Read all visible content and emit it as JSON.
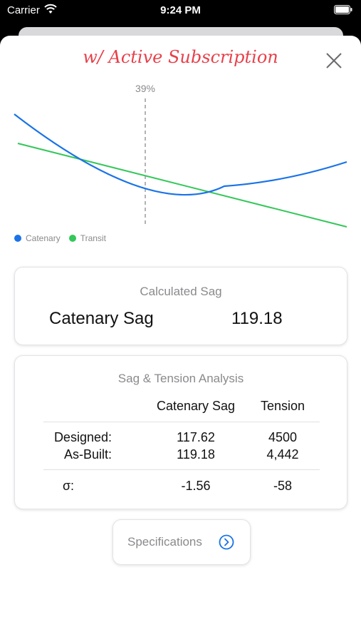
{
  "status_bar": {
    "carrier": "Carrier",
    "time": "9:24 PM"
  },
  "header": {
    "title": "w/ Active Subscription",
    "title_color": "#e8404a"
  },
  "chart_data": {
    "type": "line",
    "marker_label": "39%",
    "marker_position": 0.39,
    "series": [
      {
        "name": "Catenary",
        "color": "#1a73e8",
        "shape": "curve"
      },
      {
        "name": "Transit",
        "color": "#34c759",
        "shape": "straight"
      }
    ],
    "legend_position": "bottom-left",
    "grid": false
  },
  "calculated_sag": {
    "title": "Calculated Sag",
    "label": "Catenary Sag",
    "value": "119.18"
  },
  "analysis": {
    "title": "Sag & Tension Analysis",
    "headers": [
      "Catenary Sag",
      "Tension"
    ],
    "rows": [
      {
        "label": "Designed:",
        "sag": "117.62",
        "tension": "4500"
      },
      {
        "label": "As-Built:",
        "sag": "119.18",
        "tension": "4,442"
      }
    ],
    "sigma": {
      "label": "σ:",
      "sag": "-1.56",
      "tension": "-58"
    }
  },
  "specifications_button": {
    "label": "Specifications",
    "icon": "chevron-right-circle-icon",
    "accent": "#1a73e8"
  }
}
